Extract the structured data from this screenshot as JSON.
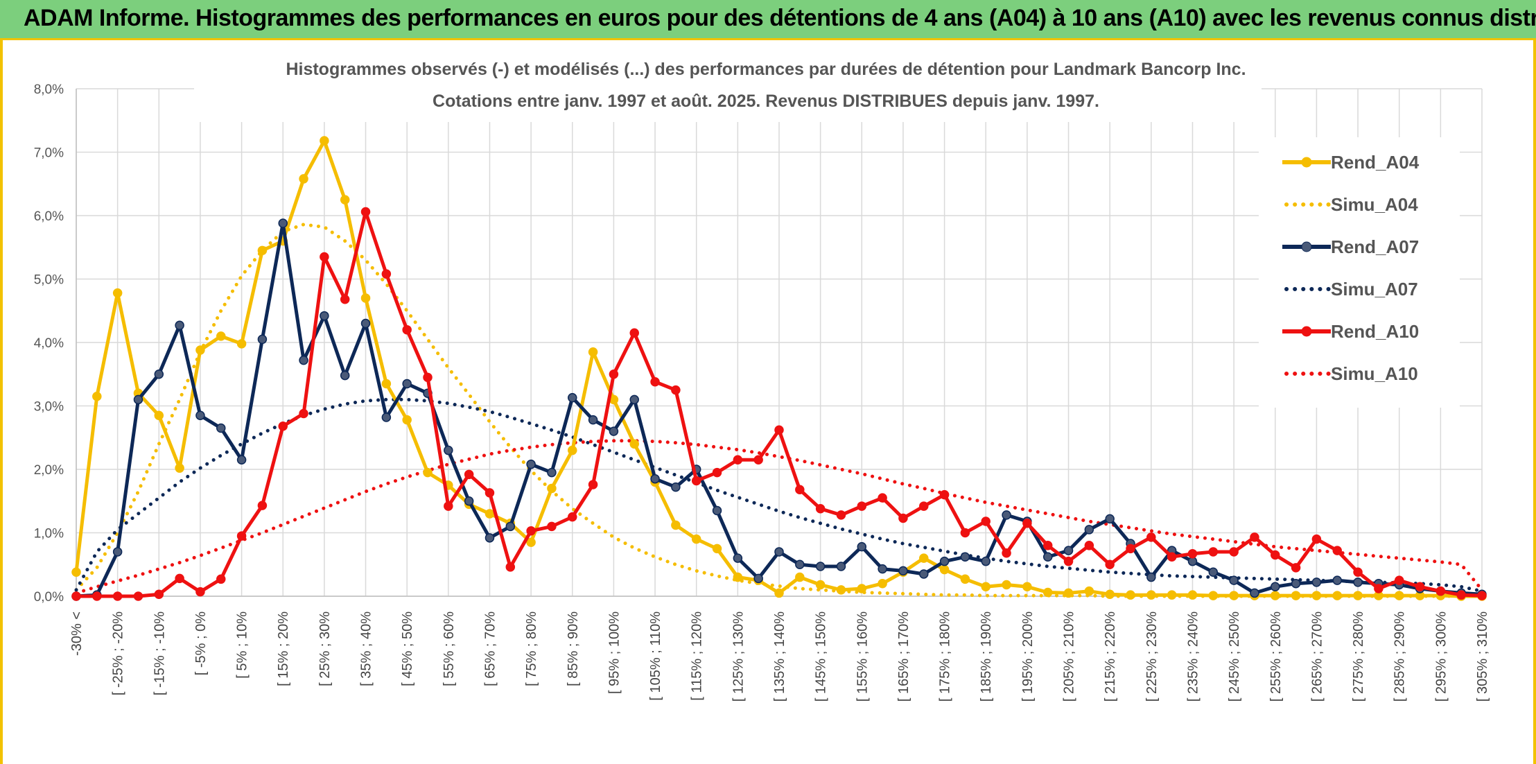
{
  "banner": {
    "title": "ADAM Informe. Histogrammes des performances en euros pour des détentions de 4 ans (A04) à 10 ans (A10) avec les revenus connus distribués"
  },
  "chart_data": {
    "type": "line",
    "title_line1": "Histogrammes observés (-) et modélisés (...) des performances par durées de détention pour Landmark Bancorp Inc.",
    "title_line2": "Cotations entre janv. 1997 et août. 2025. Revenus DISTRIBUES depuis janv. 1997.",
    "ylim": [
      0,
      8
    ],
    "yticks": [
      "0,0%",
      "1,0%",
      "2,0%",
      "3,0%",
      "4,0%",
      "5,0%",
      "6,0%",
      "7,0%",
      "8,0%"
    ],
    "grid": true,
    "legend_position": "right",
    "n_bins": 69,
    "x_labels": [
      {
        "i": 0,
        "label": "-30% <"
      },
      {
        "i": 2,
        "label": "[ -25% ; -20%"
      },
      {
        "i": 4,
        "label": "[ -15% ; -10%"
      },
      {
        "i": 6,
        "label": "[ -5% ; 0%"
      },
      {
        "i": 8,
        "label": "[ 5% ; 10%"
      },
      {
        "i": 10,
        "label": "[ 15% ; 20%"
      },
      {
        "i": 12,
        "label": "[ 25% ; 30%"
      },
      {
        "i": 14,
        "label": "[ 35% ; 40%"
      },
      {
        "i": 16,
        "label": "[ 45% ; 50%"
      },
      {
        "i": 18,
        "label": "[ 55% ; 60%"
      },
      {
        "i": 20,
        "label": "[ 65% ; 70%"
      },
      {
        "i": 22,
        "label": "[ 75% ; 80%"
      },
      {
        "i": 24,
        "label": "[ 85% ; 90%"
      },
      {
        "i": 26,
        "label": "[ 95% ; 100%"
      },
      {
        "i": 28,
        "label": "[ 105% ; 110%"
      },
      {
        "i": 30,
        "label": "[ 115% ; 120%"
      },
      {
        "i": 32,
        "label": "[ 125% ; 130%"
      },
      {
        "i": 34,
        "label": "[ 135% ; 140%"
      },
      {
        "i": 36,
        "label": "[ 145% ; 150%"
      },
      {
        "i": 38,
        "label": "[ 155% ; 160%"
      },
      {
        "i": 40,
        "label": "[ 165% ; 170%"
      },
      {
        "i": 42,
        "label": "[ 175% ; 180%"
      },
      {
        "i": 44,
        "label": "[ 185% ; 190%"
      },
      {
        "i": 46,
        "label": "[ 195% ; 200%"
      },
      {
        "i": 48,
        "label": "[ 205% ; 210%"
      },
      {
        "i": 50,
        "label": "[ 215% ; 220%"
      },
      {
        "i": 52,
        "label": "[ 225% ; 230%"
      },
      {
        "i": 54,
        "label": "[ 235% ; 240%"
      },
      {
        "i": 56,
        "label": "[ 245% ; 250%"
      },
      {
        "i": 58,
        "label": "[ 255% ; 260%"
      },
      {
        "i": 60,
        "label": "[ 265% ; 270%"
      },
      {
        "i": 62,
        "label": "[ 275% ; 280%"
      },
      {
        "i": 64,
        "label": "[ 285% ; 290%"
      },
      {
        "i": 66,
        "label": "[ 295% ; 300%"
      },
      {
        "i": 68,
        "label": "[ 305% ; 310%"
      }
    ],
    "series": [
      {
        "name": "Rend_A04",
        "style": "solid",
        "color": "#f5bd00",
        "values": [
          0.38,
          3.15,
          4.78,
          3.2,
          2.85,
          2.02,
          3.88,
          4.1,
          3.98,
          5.45,
          5.6,
          6.58,
          7.18,
          6.25,
          4.7,
          3.35,
          2.78,
          1.95,
          1.75,
          1.45,
          1.3,
          1.15,
          0.85,
          1.7,
          2.3,
          3.85,
          3.1,
          2.4,
          1.8,
          1.12,
          0.9,
          0.75,
          0.3,
          0.25,
          0.05,
          0.3,
          0.18,
          0.1,
          0.12,
          0.2,
          0.38,
          0.6,
          0.42,
          0.27,
          0.15,
          0.18,
          0.15,
          0.06,
          0.05,
          0.08,
          0.03,
          0.02,
          0.02,
          0.02,
          0.02,
          0.01,
          0.01,
          0.01,
          0.01,
          0.01,
          0.01,
          0.01,
          0.01,
          0.01,
          0.01,
          0.01,
          0.01,
          0.0,
          0.0
        ]
      },
      {
        "name": "Simu_A04",
        "style": "dotted",
        "color": "#f5bd00",
        "values": [
          0.1,
          0.45,
          1.0,
          1.65,
          2.4,
          3.1,
          3.85,
          4.5,
          5.05,
          5.45,
          5.75,
          5.86,
          5.82,
          5.6,
          5.3,
          4.92,
          4.5,
          4.05,
          3.6,
          3.18,
          2.75,
          2.35,
          1.98,
          1.66,
          1.38,
          1.15,
          0.93,
          0.76,
          0.62,
          0.5,
          0.4,
          0.32,
          0.25,
          0.2,
          0.16,
          0.12,
          0.1,
          0.08,
          0.06,
          0.05,
          0.04,
          0.03,
          0.02,
          0.02,
          0.01,
          0.01,
          0.01,
          0.01,
          0.01,
          0.01,
          0.0,
          0.0,
          0.0,
          0.0,
          0.0,
          0.0,
          0.0,
          0.0,
          0.0,
          0.0,
          0.0,
          0.0,
          0.0,
          0.0,
          0.0,
          0.0,
          0.0,
          0.0,
          0.0
        ]
      },
      {
        "name": "Rend_A07",
        "style": "solid",
        "color": "#0d2857",
        "values": [
          0.0,
          0.02,
          0.7,
          3.1,
          3.5,
          4.27,
          2.85,
          2.65,
          2.15,
          4.05,
          5.88,
          3.72,
          4.42,
          3.48,
          4.3,
          2.82,
          3.35,
          3.2,
          2.3,
          1.5,
          0.92,
          1.1,
          2.08,
          1.95,
          3.13,
          2.78,
          2.6,
          3.1,
          1.85,
          1.72,
          2.0,
          1.35,
          0.6,
          0.28,
          0.7,
          0.5,
          0.47,
          0.47,
          0.78,
          0.43,
          0.4,
          0.35,
          0.55,
          0.62,
          0.55,
          1.28,
          1.18,
          0.62,
          0.72,
          1.05,
          1.22,
          0.83,
          0.3,
          0.72,
          0.55,
          0.38,
          0.25,
          0.05,
          0.15,
          0.2,
          0.22,
          0.25,
          0.22,
          0.2,
          0.18,
          0.12,
          0.08,
          0.05,
          0.03
        ]
      },
      {
        "name": "Simu_A07",
        "style": "dotted",
        "color": "#0d2857",
        "values": [
          0.1,
          0.7,
          1.05,
          1.3,
          1.55,
          1.8,
          2.02,
          2.22,
          2.4,
          2.57,
          2.72,
          2.85,
          2.95,
          3.03,
          3.08,
          3.1,
          3.1,
          3.08,
          3.04,
          2.98,
          2.91,
          2.82,
          2.72,
          2.62,
          2.51,
          2.39,
          2.27,
          2.15,
          2.03,
          1.91,
          1.79,
          1.67,
          1.56,
          1.45,
          1.34,
          1.24,
          1.15,
          1.06,
          0.98,
          0.9,
          0.83,
          0.77,
          0.71,
          0.65,
          0.6,
          0.55,
          0.51,
          0.47,
          0.44,
          0.41,
          0.38,
          0.36,
          0.34,
          0.32,
          0.31,
          0.3,
          0.29,
          0.28,
          0.27,
          0.26,
          0.25,
          0.24,
          0.23,
          0.22,
          0.21,
          0.2,
          0.18,
          0.15,
          0.08
        ]
      },
      {
        "name": "Rend_A10",
        "style": "solid",
        "color": "#ee1111",
        "values": [
          0.0,
          0.0,
          0.0,
          0.0,
          0.03,
          0.28,
          0.07,
          0.27,
          0.95,
          1.43,
          2.68,
          2.88,
          5.35,
          4.68,
          6.06,
          5.08,
          4.2,
          3.45,
          1.42,
          1.92,
          1.63,
          0.46,
          1.03,
          1.1,
          1.25,
          1.76,
          3.5,
          4.15,
          3.38,
          3.25,
          1.82,
          1.95,
          2.15,
          2.15,
          2.62,
          1.68,
          1.38,
          1.28,
          1.42,
          1.55,
          1.23,
          1.42,
          1.6,
          1.0,
          1.18,
          0.68,
          1.15,
          0.8,
          0.55,
          0.8,
          0.5,
          0.75,
          0.93,
          0.62,
          0.67,
          0.7,
          0.7,
          0.93,
          0.65,
          0.45,
          0.9,
          0.72,
          0.38,
          0.12,
          0.25,
          0.15,
          0.08,
          0.02,
          0.01
        ]
      },
      {
        "name": "Simu_A10",
        "style": "dotted",
        "color": "#ee1111",
        "values": [
          0.05,
          0.15,
          0.24,
          0.33,
          0.43,
          0.53,
          0.64,
          0.76,
          0.88,
          1.0,
          1.13,
          1.26,
          1.39,
          1.52,
          1.65,
          1.77,
          1.88,
          1.98,
          2.08,
          2.16,
          2.24,
          2.3,
          2.35,
          2.39,
          2.42,
          2.44,
          2.45,
          2.45,
          2.44,
          2.42,
          2.39,
          2.35,
          2.31,
          2.26,
          2.2,
          2.14,
          2.07,
          2.0,
          1.93,
          1.85,
          1.77,
          1.7,
          1.62,
          1.55,
          1.48,
          1.42,
          1.36,
          1.3,
          1.24,
          1.18,
          1.13,
          1.08,
          1.03,
          0.98,
          0.94,
          0.9,
          0.86,
          0.82,
          0.78,
          0.75,
          0.72,
          0.69,
          0.66,
          0.63,
          0.6,
          0.57,
          0.54,
          0.5,
          0.1
        ]
      }
    ]
  }
}
